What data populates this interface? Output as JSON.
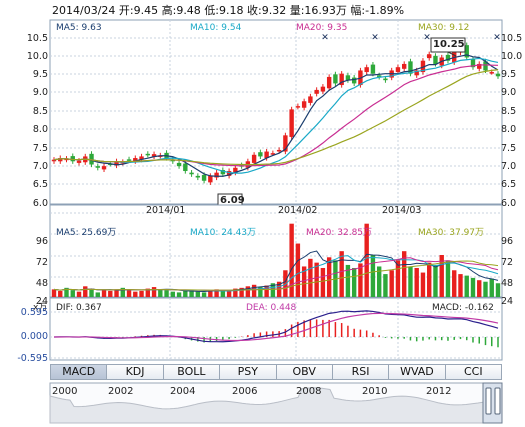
{
  "header": {
    "date": "2014/03/24",
    "open": "开:9.45",
    "high": "高:9.48",
    "low": "低:9.18",
    "close": "收:9.32",
    "volume": "量:16.93万",
    "change": "幅:-1.89%"
  },
  "price_panel": {
    "ma5": "MA5: 9.63",
    "ma10": "MA10: 9.54",
    "ma20": "MA20: 9.35",
    "ma30": "MA30: 9.12",
    "ticks": [
      "10.5",
      "10.0",
      "9.5",
      "9.0",
      "8.5",
      "8.0",
      "7.5",
      "7.0",
      "6.5",
      "6.0"
    ],
    "high_label": "10.25",
    "low_label": "6.09",
    "dates": [
      "2014/01",
      "2014/02",
      "2014/03"
    ]
  },
  "volume_panel": {
    "ma5": "MA5: 25.69万",
    "ma10": "MA10: 24.43万",
    "ma20": "MA20: 32.85万",
    "ma30": "MA30: 37.97万",
    "ticks": [
      "96",
      "72",
      "48",
      "24"
    ],
    "unit": "x万"
  },
  "macd_panel": {
    "dif": "DIF: 0.367",
    "dea": "DEA: 0.448",
    "macd": "MACD: -0.162",
    "ticks": [
      "0.595",
      "0.000",
      "-0.595"
    ]
  },
  "tabs": [
    "MACD",
    "KDJ",
    "BOLL",
    "PSY",
    "OBV",
    "RSI",
    "WVAD",
    "CCI"
  ],
  "active_tab": "MACD",
  "timeline": {
    "years": [
      "2000",
      "2002",
      "2004",
      "2006",
      "2008",
      "2010",
      "2012"
    ]
  },
  "colors": {
    "up": "#e8201e",
    "down": "#2ea83a",
    "ma5": "#1a3d6e",
    "ma10": "#1aa9c7",
    "ma20": "#c92e92",
    "ma30": "#9aa51f",
    "dif": "#2a1f8c",
    "dea": "#c03aa6"
  }
}
